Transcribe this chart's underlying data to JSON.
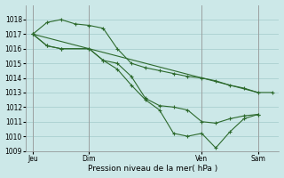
{
  "background_color": "#cce8e8",
  "grid_color": "#aacfcf",
  "line_color": "#2d6a2d",
  "title": "Pression niveau de la mer( hPa )",
  "ylim": [
    1009,
    1019
  ],
  "yticks": [
    1009,
    1010,
    1011,
    1012,
    1013,
    1014,
    1015,
    1016,
    1017,
    1018
  ],
  "xlim": [
    0,
    108
  ],
  "xtick_positions": [
    3,
    27,
    75,
    99
  ],
  "xtick_labels": [
    "Jeu",
    "Dim",
    "Ven",
    "Sam"
  ],
  "vlines": [
    3,
    27,
    75,
    99
  ],
  "series1": {
    "x": [
      3,
      9,
      15,
      21,
      27,
      33,
      39,
      45,
      51,
      57,
      63,
      69,
      75,
      81,
      87,
      93,
      99,
      105
    ],
    "y": [
      1017.0,
      1017.8,
      1018.0,
      1017.7,
      1017.6,
      1017.4,
      1016.0,
      1015.0,
      1014.7,
      1014.5,
      1014.3,
      1014.1,
      1014.0,
      1013.8,
      1013.5,
      1013.3,
      1013.0,
      1013.0
    ]
  },
  "series2": {
    "x": [
      3,
      9,
      15,
      27,
      33,
      39,
      45,
      51,
      57,
      63,
      69,
      75,
      81,
      87,
      93,
      99
    ],
    "y": [
      1017.0,
      1016.2,
      1016.0,
      1016.0,
      1015.2,
      1015.0,
      1014.1,
      1012.6,
      1012.1,
      1012.0,
      1011.8,
      1011.0,
      1010.9,
      1011.2,
      1011.4,
      1011.5
    ]
  },
  "series3": {
    "x": [
      3,
      9,
      15,
      27,
      33,
      39,
      45,
      51,
      57,
      63,
      69,
      75,
      81,
      87,
      93,
      99
    ],
    "y": [
      1017.0,
      1016.2,
      1016.0,
      1016.0,
      1015.2,
      1014.6,
      1013.5,
      1012.5,
      1011.8,
      1010.2,
      1010.0,
      1010.2,
      1009.2,
      1010.3,
      1011.2,
      1011.5
    ]
  },
  "series4": {
    "x": [
      3,
      99
    ],
    "y": [
      1017.0,
      1013.0
    ]
  }
}
